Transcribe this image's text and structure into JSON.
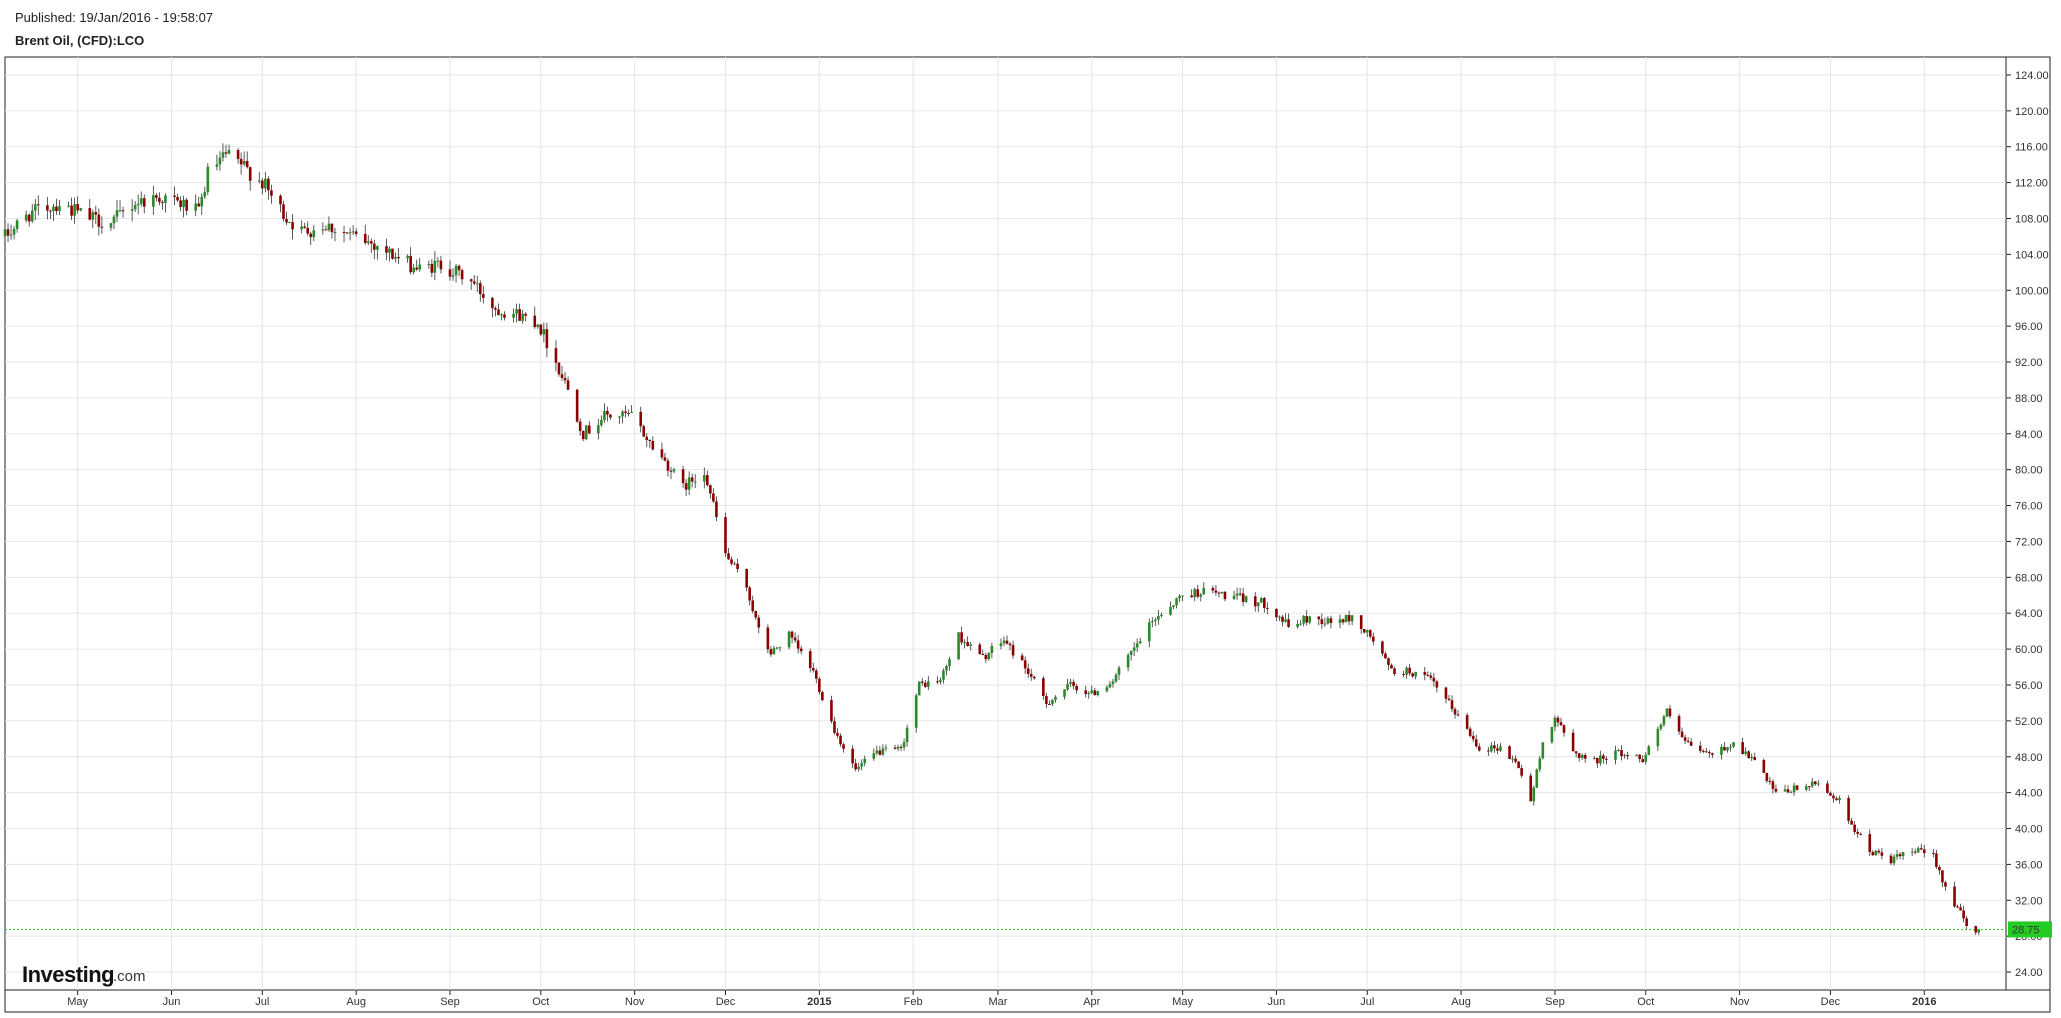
{
  "header": {
    "published": "Published: 19/Jan/2016 - 19:58:07",
    "symbol": "Brent Oil, (CFD):LCO"
  },
  "watermark": {
    "brand": "Investing",
    "suffix": ".com"
  },
  "colors": {
    "up": "#2a8a2a",
    "down": "#8b0000",
    "grid": "#e6e6e6",
    "last_price_bg": "#22cc22"
  },
  "chart_data": {
    "type": "candlestick",
    "title": "Brent Oil, (CFD):LCO",
    "ylim": [
      22,
      126
    ],
    "yticks": [
      24,
      28,
      32,
      36,
      40,
      44,
      48,
      52,
      56,
      60,
      64,
      68,
      72,
      76,
      80,
      84,
      88,
      92,
      96,
      100,
      104,
      108,
      112,
      116,
      120,
      124
    ],
    "ytick_labels": [
      "24.00",
      "28.00",
      "32.00",
      "36.00",
      "40.00",
      "44.00",
      "48.00",
      "52.00",
      "56.00",
      "60.00",
      "64.00",
      "68.00",
      "72.00",
      "76.00",
      "80.00",
      "84.00",
      "88.00",
      "92.00",
      "96.00",
      "100.00",
      "104.00",
      "108.00",
      "112.00",
      "116.00",
      "120.00",
      "124.00"
    ],
    "x_start": "2014-04-07",
    "x_end": "2016-01-28",
    "xticks": [
      {
        "date": "2014-05-01",
        "label": "May",
        "bold": false
      },
      {
        "date": "2014-06-01",
        "label": "Jun",
        "bold": false
      },
      {
        "date": "2014-07-01",
        "label": "Jul",
        "bold": false
      },
      {
        "date": "2014-08-01",
        "label": "Aug",
        "bold": false
      },
      {
        "date": "2014-09-01",
        "label": "Sep",
        "bold": false
      },
      {
        "date": "2014-10-01",
        "label": "Oct",
        "bold": false
      },
      {
        "date": "2014-11-01",
        "label": "Nov",
        "bold": false
      },
      {
        "date": "2014-12-01",
        "label": "Dec",
        "bold": false
      },
      {
        "date": "2015-01-01",
        "label": "2015",
        "bold": true
      },
      {
        "date": "2015-02-01",
        "label": "Feb",
        "bold": false
      },
      {
        "date": "2015-03-01",
        "label": "Mar",
        "bold": false
      },
      {
        "date": "2015-04-01",
        "label": "Apr",
        "bold": false
      },
      {
        "date": "2015-05-01",
        "label": "May",
        "bold": false
      },
      {
        "date": "2015-06-01",
        "label": "Jun",
        "bold": false
      },
      {
        "date": "2015-07-01",
        "label": "Jul",
        "bold": false
      },
      {
        "date": "2015-08-01",
        "label": "Aug",
        "bold": false
      },
      {
        "date": "2015-09-01",
        "label": "Sep",
        "bold": false
      },
      {
        "date": "2015-10-01",
        "label": "Oct",
        "bold": false
      },
      {
        "date": "2015-11-01",
        "label": "Nov",
        "bold": false
      },
      {
        "date": "2015-12-01",
        "label": "Dec",
        "bold": false
      },
      {
        "date": "2016-01-01",
        "label": "2016",
        "bold": true
      }
    ],
    "last_price": 28.75,
    "last_price_label": "28.75",
    "close_path": [
      [
        "2014-04-07",
        106.0
      ],
      [
        "2014-04-15",
        108.5
      ],
      [
        "2014-04-25",
        109.7
      ],
      [
        "2014-05-05",
        108.0
      ],
      [
        "2014-05-12",
        107.5
      ],
      [
        "2014-05-20",
        109.8
      ],
      [
        "2014-05-28",
        110.4
      ],
      [
        "2014-06-05",
        109.5
      ],
      [
        "2014-06-10",
        108.6
      ],
      [
        "2014-06-13",
        113.0
      ],
      [
        "2014-06-19",
        115.0
      ],
      [
        "2014-06-24",
        114.0
      ],
      [
        "2014-07-01",
        112.0
      ],
      [
        "2014-07-08",
        108.5
      ],
      [
        "2014-07-14",
        106.5
      ],
      [
        "2014-07-22",
        107.3
      ],
      [
        "2014-07-31",
        106.0
      ],
      [
        "2014-08-08",
        105.0
      ],
      [
        "2014-08-15",
        103.5
      ],
      [
        "2014-08-22",
        102.3
      ],
      [
        "2014-08-29",
        102.9
      ],
      [
        "2014-09-08",
        101.0
      ],
      [
        "2014-09-16",
        98.0
      ],
      [
        "2014-09-22",
        97.5
      ],
      [
        "2014-09-30",
        96.5
      ],
      [
        "2014-10-06",
        92.0
      ],
      [
        "2014-10-10",
        89.0
      ],
      [
        "2014-10-15",
        84.0
      ],
      [
        "2014-10-22",
        86.0
      ],
      [
        "2014-10-31",
        86.0
      ],
      [
        "2014-11-06",
        83.0
      ],
      [
        "2014-11-12",
        80.5
      ],
      [
        "2014-11-17",
        78.0
      ],
      [
        "2014-11-24",
        80.0
      ],
      [
        "2014-11-27",
        76.0
      ],
      [
        "2014-12-01",
        70.5
      ],
      [
        "2014-12-08",
        67.0
      ],
      [
        "2014-12-12",
        62.0
      ],
      [
        "2014-12-16",
        59.5
      ],
      [
        "2014-12-22",
        61.5
      ],
      [
        "2014-12-30",
        57.5
      ],
      [
        "2015-01-06",
        51.0
      ],
      [
        "2015-01-13",
        46.5
      ],
      [
        "2015-01-20",
        48.5
      ],
      [
        "2015-01-28",
        48.8
      ],
      [
        "2015-02-03",
        56.0
      ],
      [
        "2015-02-10",
        56.5
      ],
      [
        "2015-02-16",
        61.5
      ],
      [
        "2015-02-24",
        59.0
      ],
      [
        "2015-03-03",
        61.0
      ],
      [
        "2015-03-10",
        58.0
      ],
      [
        "2015-03-17",
        54.0
      ],
      [
        "2015-03-25",
        56.0
      ],
      [
        "2015-04-01",
        55.0
      ],
      [
        "2015-04-08",
        56.5
      ],
      [
        "2015-04-15",
        60.0
      ],
      [
        "2015-04-22",
        63.5
      ],
      [
        "2015-05-01",
        66.0
      ],
      [
        "2015-05-08",
        66.5
      ],
      [
        "2015-05-15",
        66.0
      ],
      [
        "2015-05-22",
        65.5
      ],
      [
        "2015-05-29",
        65.0
      ],
      [
        "2015-06-05",
        62.5
      ],
      [
        "2015-06-12",
        63.5
      ],
      [
        "2015-06-19",
        63.0
      ],
      [
        "2015-06-26",
        63.5
      ],
      [
        "2015-07-03",
        61.0
      ],
      [
        "2015-07-09",
        57.5
      ],
      [
        "2015-07-15",
        57.5
      ],
      [
        "2015-07-22",
        56.5
      ],
      [
        "2015-07-30",
        53.0
      ],
      [
        "2015-08-07",
        49.0
      ],
      [
        "2015-08-14",
        49.0
      ],
      [
        "2015-08-20",
        47.0
      ],
      [
        "2015-08-24",
        43.0
      ],
      [
        "2015-08-28",
        49.5
      ],
      [
        "2015-09-01",
        52.5
      ],
      [
        "2015-09-07",
        48.5
      ],
      [
        "2015-09-14",
        47.5
      ],
      [
        "2015-09-21",
        48.5
      ],
      [
        "2015-09-30",
        47.8
      ],
      [
        "2015-10-08",
        53.0
      ],
      [
        "2015-10-14",
        49.5
      ],
      [
        "2015-10-22",
        48.2
      ],
      [
        "2015-10-30",
        49.5
      ],
      [
        "2015-11-06",
        47.5
      ],
      [
        "2015-11-13",
        43.8
      ],
      [
        "2015-11-20",
        44.5
      ],
      [
        "2015-11-27",
        45.0
      ],
      [
        "2015-12-04",
        43.0
      ],
      [
        "2015-12-09",
        40.0
      ],
      [
        "2015-12-14",
        37.5
      ],
      [
        "2015-12-21",
        36.5
      ],
      [
        "2015-12-29",
        37.5
      ],
      [
        "2016-01-04",
        37.0
      ],
      [
        "2016-01-08",
        33.5
      ],
      [
        "2016-01-13",
        30.5
      ],
      [
        "2016-01-15",
        29.0
      ],
      [
        "2016-01-18",
        28.2
      ],
      [
        "2016-01-19",
        28.75
      ]
    ]
  }
}
